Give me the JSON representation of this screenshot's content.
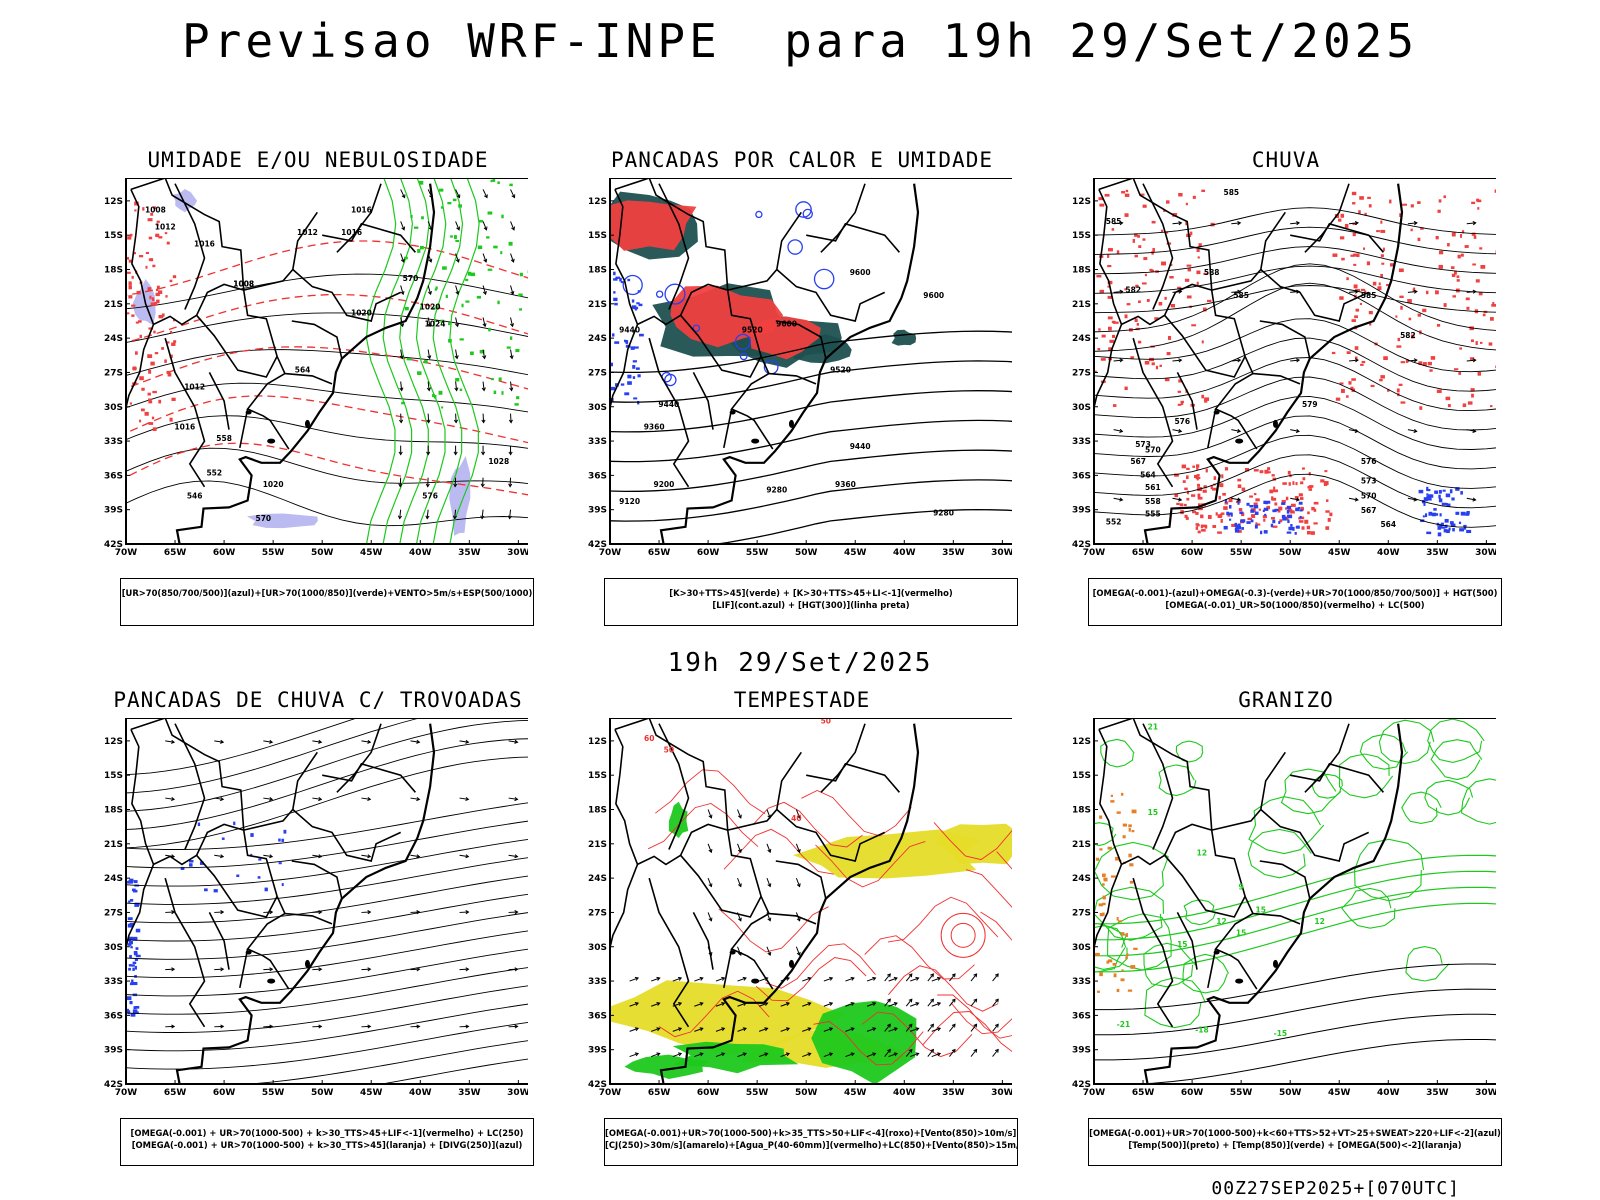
{
  "header": {
    "title": "Previsao WRF-INPE  para 19h 29/Set/2025"
  },
  "middle": {
    "title": "19h 29/Set/2025"
  },
  "footer": {
    "run_label": "00Z27SEP2025+[070UTC]"
  },
  "axes": {
    "lat_labels": [
      "12S",
      "15S",
      "18S",
      "21S",
      "24S",
      "27S",
      "30S",
      "33S",
      "36S",
      "39S",
      "42S"
    ],
    "lon_labels": [
      "70W",
      "65W",
      "60W",
      "55W",
      "50W",
      "45W",
      "40W",
      "35W",
      "30W"
    ]
  },
  "colors": {
    "green": "#1ec81e",
    "red_fill": "#f04040",
    "red_line": "#f03030",
    "blue": "#2840f0",
    "lavender": "#b4b4f0",
    "dark_teal": "#1e5050",
    "yellow": "#e6dc28",
    "orange": "#e68028",
    "black": "#000000"
  },
  "panels": [
    {
      "title": "UMIDADE E/OU NEBULOSIDADE",
      "legend": [
        "[UR>70(850/700/500)](azul)+[UR>70(1000/850)](verde)+VENTO>5m/s+ESP(500/1000)"
      ],
      "labels": [
        "1008",
        "1012",
        "1016",
        "1016",
        "1008",
        "1008",
        "1012",
        "1016",
        "1020",
        "1020",
        "1024",
        "1012",
        "1016",
        "1028",
        "1020",
        "576",
        "570",
        "564",
        "558",
        "552",
        "546",
        "570"
      ]
    },
    {
      "title": "PANCADAS POR CALOR E UMIDADE",
      "legend": [
        "[K>30+TTS>45](verde) + [K>30+TTS>45+LI<-1](vermelho)",
        "[LIF](cont.azul) + [HGT(300)](linha preta)"
      ],
      "labels": [
        "9600",
        "9600",
        "9600",
        "9520",
        "9440",
        "9520",
        "9440",
        "9360",
        "9440",
        "9360",
        "9280",
        "9200",
        "9120",
        "9280"
      ]
    },
    {
      "title": "CHUVA",
      "legend": [
        "[OMEGA(-0.001)-(azul)+OMEGA(-0.3)-(verde)+UR>70(1000/850/700/500)] + HGT(500)",
        "[OMEGA(-0.01)_UR>50(1000/850)(vermelho) + LC(500)"
      ],
      "labels": [
        "585",
        "585",
        "588",
        "582",
        "585",
        "585",
        "582",
        "579",
        "576",
        "573",
        "570",
        "567",
        "564",
        "561",
        "558",
        "555",
        "552",
        "576",
        "573",
        "570",
        "567",
        "564"
      ]
    },
    {
      "title": "PANCADAS DE CHUVA C/ TROVOADAS",
      "legend": [
        "[OMEGA(-0.001) + UR>70(1000-500) + k>30_TTS>45+LIF<-1](vermelho) + LC(250)",
        "[OMEGA(-0.001) + UR>70(1000-500) + k>30_TTS>45](laranja) + [DIVG(250)](azul)"
      ],
      "labels": []
    },
    {
      "title": "TEMPESTADE",
      "legend": [
        "[OMEGA(-0.001)+UR>70(1000-500)+k>35_TTS>50+LIF<-4](roxo)+[Vento(850)>10m/s](verde)",
        "[CJ(250)>30m/s](amarelo)+[Agua_P(40-60mm)](vermelho)+LC(850)+[Vento(850)>15m/s](vetor)"
      ],
      "labels": [
        "60",
        "50",
        "40",
        "50"
      ]
    },
    {
      "title": "GRANIZO",
      "legend": [
        "[OMEGA(-0.001)+UR>70(1000-500)+k<60+TTS>52+VT>25+SWEAT>220+LIF<-2](azul)",
        "[Temp(500)](preto) + [Temp(850)](verde) + [OMEGA(500)<-2](laranja)"
      ],
      "labels": [
        "21",
        "15",
        "12",
        "9",
        "15",
        "15",
        "12",
        "12",
        "15",
        "-21",
        "-18",
        "-15"
      ]
    }
  ]
}
